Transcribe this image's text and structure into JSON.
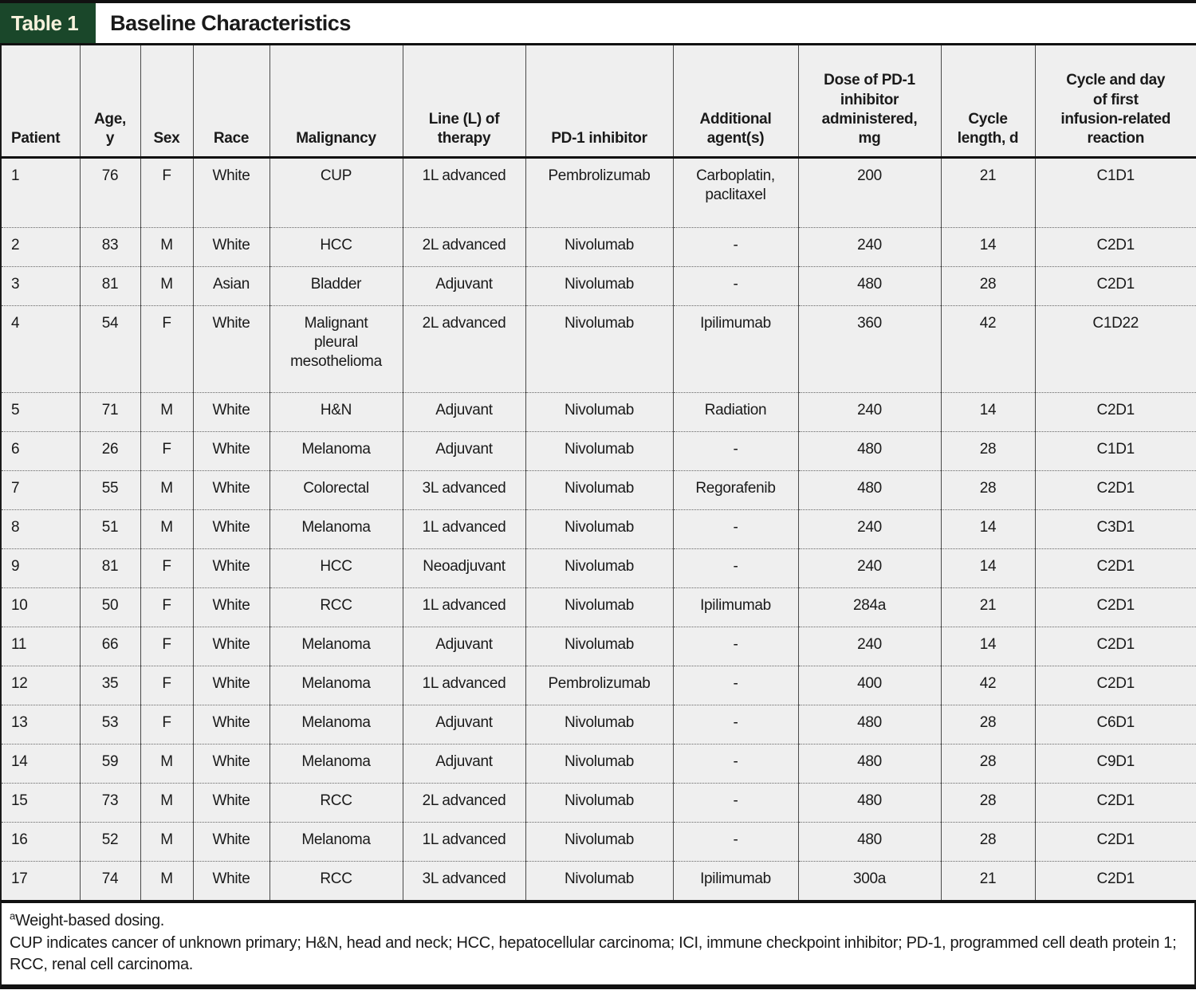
{
  "title": {
    "badge": "Table 1",
    "text": "Baseline Characteristics"
  },
  "columns": [
    {
      "key": "patient",
      "label": "Patient"
    },
    {
      "key": "age",
      "label": "Age,\ny"
    },
    {
      "key": "sex",
      "label": "Sex"
    },
    {
      "key": "race",
      "label": "Race"
    },
    {
      "key": "malignancy",
      "label": "Malignancy"
    },
    {
      "key": "line_of_therapy",
      "label": "Line (L) of\ntherapy"
    },
    {
      "key": "pd1_inhibitor",
      "label": "PD-1 inhibitor"
    },
    {
      "key": "additional_agents",
      "label": "Additional\nagent(s)"
    },
    {
      "key": "dose_mg",
      "label": "Dose of PD-1\ninhibitor\nadministered,\nmg"
    },
    {
      "key": "cycle_length_d",
      "label": "Cycle\nlength, d"
    },
    {
      "key": "first_reaction",
      "label": "Cycle and day\nof first\ninfusion-related\nreaction"
    }
  ],
  "rows": [
    {
      "patient": "1",
      "age": "76",
      "sex": "F",
      "race": "White",
      "malignancy": "CUP",
      "line_of_therapy": "1L advanced",
      "pd1_inhibitor": "Pembrolizumab",
      "additional_agents": "Carboplatin,\npaclitaxel",
      "dose_mg": "200",
      "cycle_length_d": "21",
      "first_reaction": "C1D1"
    },
    {
      "patient": "2",
      "age": "83",
      "sex": "M",
      "race": "White",
      "malignancy": "HCC",
      "line_of_therapy": "2L advanced",
      "pd1_inhibitor": "Nivolumab",
      "additional_agents": "-",
      "dose_mg": "240",
      "cycle_length_d": "14",
      "first_reaction": "C2D1"
    },
    {
      "patient": "3",
      "age": "81",
      "sex": "M",
      "race": "Asian",
      "malignancy": "Bladder",
      "line_of_therapy": "Adjuvant",
      "pd1_inhibitor": "Nivolumab",
      "additional_agents": "-",
      "dose_mg": "480",
      "cycle_length_d": "28",
      "first_reaction": "C2D1"
    },
    {
      "patient": "4",
      "age": "54",
      "sex": "F",
      "race": "White",
      "malignancy": "Malignant\npleural\nmesothelioma",
      "line_of_therapy": "2L advanced",
      "pd1_inhibitor": "Nivolumab",
      "additional_agents": "Ipilimumab",
      "dose_mg": "360",
      "cycle_length_d": "42",
      "first_reaction": "C1D22"
    },
    {
      "patient": "5",
      "age": "71",
      "sex": "M",
      "race": "White",
      "malignancy": "H&N",
      "line_of_therapy": "Adjuvant",
      "pd1_inhibitor": "Nivolumab",
      "additional_agents": "Radiation",
      "dose_mg": "240",
      "cycle_length_d": "14",
      "first_reaction": "C2D1"
    },
    {
      "patient": "6",
      "age": "26",
      "sex": "F",
      "race": "White",
      "malignancy": "Melanoma",
      "line_of_therapy": "Adjuvant",
      "pd1_inhibitor": "Nivolumab",
      "additional_agents": "-",
      "dose_mg": "480",
      "cycle_length_d": "28",
      "first_reaction": "C1D1"
    },
    {
      "patient": "7",
      "age": "55",
      "sex": "M",
      "race": "White",
      "malignancy": "Colorectal",
      "line_of_therapy": "3L advanced",
      "pd1_inhibitor": "Nivolumab",
      "additional_agents": "Regorafenib",
      "dose_mg": "480",
      "cycle_length_d": "28",
      "first_reaction": "C2D1"
    },
    {
      "patient": "8",
      "age": "51",
      "sex": "M",
      "race": "White",
      "malignancy": "Melanoma",
      "line_of_therapy": "1L advanced",
      "pd1_inhibitor": "Nivolumab",
      "additional_agents": "-",
      "dose_mg": "240",
      "cycle_length_d": "14",
      "first_reaction": "C3D1"
    },
    {
      "patient": "9",
      "age": "81",
      "sex": "F",
      "race": "White",
      "malignancy": "HCC",
      "line_of_therapy": "Neoadjuvant",
      "pd1_inhibitor": "Nivolumab",
      "additional_agents": "-",
      "dose_mg": "240",
      "cycle_length_d": "14",
      "first_reaction": "C2D1"
    },
    {
      "patient": "10",
      "age": "50",
      "sex": "F",
      "race": "White",
      "malignancy": "RCC",
      "line_of_therapy": "1L advanced",
      "pd1_inhibitor": "Nivolumab",
      "additional_agents": "Ipilimumab",
      "dose_mg": "284a",
      "cycle_length_d": "21",
      "first_reaction": "C2D1"
    },
    {
      "patient": "11",
      "age": "66",
      "sex": "F",
      "race": "White",
      "malignancy": "Melanoma",
      "line_of_therapy": "Adjuvant",
      "pd1_inhibitor": "Nivolumab",
      "additional_agents": "-",
      "dose_mg": "240",
      "cycle_length_d": "14",
      "first_reaction": "C2D1"
    },
    {
      "patient": "12",
      "age": "35",
      "sex": "F",
      "race": "White",
      "malignancy": "Melanoma",
      "line_of_therapy": "1L advanced",
      "pd1_inhibitor": "Pembrolizumab",
      "additional_agents": "-",
      "dose_mg": "400",
      "cycle_length_d": "42",
      "first_reaction": "C2D1"
    },
    {
      "patient": "13",
      "age": "53",
      "sex": "F",
      "race": "White",
      "malignancy": "Melanoma",
      "line_of_therapy": "Adjuvant",
      "pd1_inhibitor": "Nivolumab",
      "additional_agents": "-",
      "dose_mg": "480",
      "cycle_length_d": "28",
      "first_reaction": "C6D1"
    },
    {
      "patient": "14",
      "age": "59",
      "sex": "M",
      "race": "White",
      "malignancy": "Melanoma",
      "line_of_therapy": "Adjuvant",
      "pd1_inhibitor": "Nivolumab",
      "additional_agents": "-",
      "dose_mg": "480",
      "cycle_length_d": "28",
      "first_reaction": "C9D1"
    },
    {
      "patient": "15",
      "age": "73",
      "sex": "M",
      "race": "White",
      "malignancy": "RCC",
      "line_of_therapy": "2L advanced",
      "pd1_inhibitor": "Nivolumab",
      "additional_agents": "-",
      "dose_mg": "480",
      "cycle_length_d": "28",
      "first_reaction": "C2D1"
    },
    {
      "patient": "16",
      "age": "52",
      "sex": "M",
      "race": "White",
      "malignancy": "Melanoma",
      "line_of_therapy": "1L advanced",
      "pd1_inhibitor": "Nivolumab",
      "additional_agents": "-",
      "dose_mg": "480",
      "cycle_length_d": "28",
      "first_reaction": "C2D1"
    },
    {
      "patient": "17",
      "age": "74",
      "sex": "M",
      "race": "White",
      "malignancy": "RCC",
      "line_of_therapy": "3L advanced",
      "pd1_inhibitor": "Nivolumab",
      "additional_agents": "Ipilimumab",
      "dose_mg": "300a",
      "cycle_length_d": "21",
      "first_reaction": "C2D1"
    }
  ],
  "footnotes": {
    "marker": "a",
    "weight_note": "Weight-based dosing.",
    "abbreviations": "CUP indicates cancer of unknown primary; H&N, head and neck; HCC, hepatocellular carcinoma; ICI, immune checkpoint inhibitor; PD-1, programmed cell death protein 1; RCC, renal cell carcinoma."
  },
  "colors": {
    "badge_background": "#1a472a",
    "badge_text": "#f7f2dc",
    "cell_background": "#efefef",
    "rule": "#111111"
  }
}
